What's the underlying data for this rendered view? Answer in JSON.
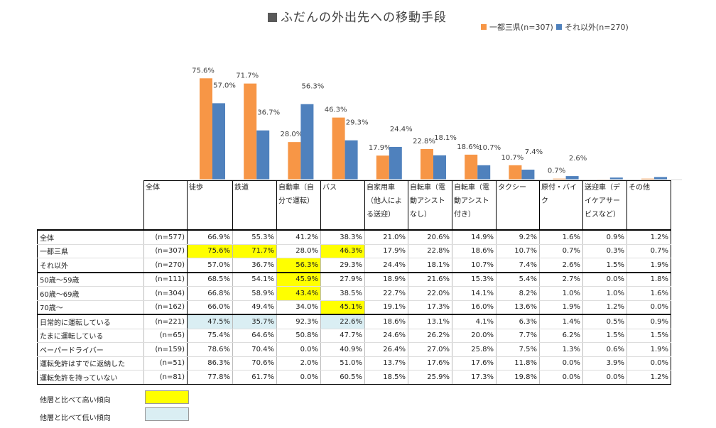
{
  "chart_data": {
    "type": "bar",
    "title": "ふだんの外出先への移動手段",
    "categories": [
      "徒歩",
      "鉄道",
      "自動車（自分で運転）",
      "バス",
      "自家用車（他人による送迎）",
      "自転車（電動アシストなし）",
      "自転車（電動アシスト付き）",
      "タクシー",
      "原付・バイク",
      "送迎車（デイケアサービスなど）",
      "その他"
    ],
    "series": [
      {
        "name": "一都三県(n=307)",
        "color": "#f79646",
        "values": [
          75.6,
          71.7,
          28.0,
          46.3,
          17.9,
          22.8,
          18.6,
          10.7,
          0.7,
          0.3,
          0.7
        ]
      },
      {
        "name": "それ以外(n=270)",
        "color": "#4f81bd",
        "values": [
          57.0,
          36.7,
          56.3,
          29.3,
          24.4,
          18.1,
          10.7,
          7.4,
          2.6,
          1.5,
          1.9
        ]
      }
    ],
    "data_labels": [
      [
        "75.6%",
        "71.7%",
        "28.0%",
        "46.3%",
        "17.9%",
        "22.8%",
        "18.6%",
        "10.7%",
        "0.7%",
        "",
        ""
      ],
      [
        "57.0%",
        "36.7%",
        "56.3%",
        "29.3%",
        "24.4%",
        "18.1%",
        "10.7%",
        "7.4%",
        "2.6%",
        "",
        ""
      ]
    ],
    "ylim": [
      0,
      80
    ],
    "grid": false,
    "legend": "top-right"
  },
  "table": {
    "headers": [
      [
        "全体"
      ],
      [
        "徒歩"
      ],
      [
        "鉄道"
      ],
      [
        "自動車（自",
        "分で運転）"
      ],
      [
        "バス"
      ],
      [
        "自家用車",
        "（他人によ",
        "る送迎）"
      ],
      [
        "自転車（電",
        "動アシスト",
        "なし）"
      ],
      [
        "自転車（電",
        "動アシスト",
        "付き）"
      ],
      [
        "タクシー"
      ],
      [
        "原付・バイ",
        "ク"
      ],
      [
        "送迎車（デ",
        "イケアサー",
        "ビスなど）"
      ],
      [
        "その他"
      ]
    ],
    "rows": [
      {
        "label": "全体",
        "n": "(n=577)",
        "values": [
          "66.9%",
          "55.3%",
          "41.2%",
          "38.3%",
          "21.0%",
          "20.6%",
          "14.9%",
          "9.2%",
          "1.6%",
          "0.9%",
          "1.2%"
        ]
      },
      {
        "label": "一都三県",
        "n": "(n=307)",
        "values": [
          "75.6%",
          "71.7%",
          "28.0%",
          "46.3%",
          "17.9%",
          "22.8%",
          "18.6%",
          "10.7%",
          "0.7%",
          "0.3%",
          "0.7%"
        ]
      },
      {
        "label": "それ以外",
        "n": "(n=270)",
        "values": [
          "57.0%",
          "36.7%",
          "56.3%",
          "29.3%",
          "24.4%",
          "18.1%",
          "10.7%",
          "7.4%",
          "2.6%",
          "1.5%",
          "1.9%"
        ]
      },
      {
        "label": "50歳～59歳",
        "n": "(n=111)",
        "values": [
          "68.5%",
          "54.1%",
          "45.9%",
          "27.9%",
          "18.9%",
          "21.6%",
          "15.3%",
          "5.4%",
          "2.7%",
          "0.0%",
          "1.8%"
        ]
      },
      {
        "label": "60歳～69歳",
        "n": "(n=304)",
        "values": [
          "66.8%",
          "58.9%",
          "43.4%",
          "38.5%",
          "22.7%",
          "22.0%",
          "14.1%",
          "8.2%",
          "1.0%",
          "1.0%",
          "1.6%"
        ]
      },
      {
        "label": "70歳～",
        "n": "(n=162)",
        "values": [
          "66.0%",
          "49.4%",
          "34.0%",
          "45.1%",
          "19.1%",
          "17.3%",
          "16.0%",
          "13.6%",
          "1.9%",
          "1.2%",
          "0.0%"
        ]
      },
      {
        "label": "日常的に運転している",
        "n": "(n=221)",
        "values": [
          "47.5%",
          "35.7%",
          "92.3%",
          "22.6%",
          "18.6%",
          "13.1%",
          "4.1%",
          "6.3%",
          "1.4%",
          "0.5%",
          "0.9%"
        ]
      },
      {
        "label": "たまに運転している",
        "n": "(n=65)",
        "values": [
          "75.4%",
          "64.6%",
          "50.8%",
          "47.7%",
          "24.6%",
          "26.2%",
          "20.0%",
          "7.7%",
          "6.2%",
          "1.5%",
          "1.5%"
        ]
      },
      {
        "label": "ペーパードライバー",
        "n": "(n=159)",
        "values": [
          "78.6%",
          "70.4%",
          "0.0%",
          "40.9%",
          "26.4%",
          "27.0%",
          "25.8%",
          "7.5%",
          "1.3%",
          "0.6%",
          "1.9%"
        ]
      },
      {
        "label": "運転免許はすでに返納した",
        "n": "(n=51)",
        "values": [
          "86.3%",
          "70.6%",
          "2.0%",
          "51.0%",
          "13.7%",
          "17.6%",
          "17.6%",
          "11.8%",
          "0.0%",
          "3.9%",
          "0.0%"
        ]
      },
      {
        "label": "運転免許を持っていない",
        "n": "(n=81)",
        "values": [
          "77.8%",
          "61.7%",
          "0.0%",
          "60.5%",
          "18.5%",
          "25.9%",
          "17.3%",
          "19.8%",
          "0.0%",
          "0.0%",
          "1.2%"
        ]
      }
    ],
    "highlight_high": [
      [
        1,
        0
      ],
      [
        1,
        1
      ],
      [
        1,
        3
      ],
      [
        2,
        2
      ],
      [
        3,
        2
      ],
      [
        4,
        2
      ],
      [
        5,
        3
      ]
    ],
    "highlight_low": [
      [
        6,
        0
      ],
      [
        6,
        1
      ],
      [
        6,
        3
      ]
    ],
    "colors": {
      "high": "#ffff00",
      "low": "#daeef3"
    }
  },
  "key": {
    "high_label": "他層と比べて高い傾向",
    "low_label": "他層と比べて低い傾向"
  }
}
